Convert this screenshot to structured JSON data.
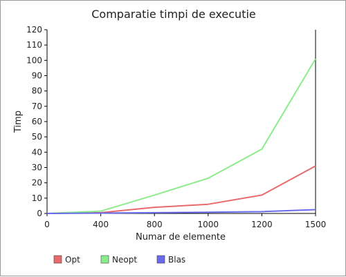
{
  "chart_data": {
    "type": "line",
    "title": "Comparatie timpi de executie",
    "xlabel": "Numar de elemente",
    "ylabel": "Timp",
    "x_categories": [
      "0",
      "400",
      "800",
      "1000",
      "1200",
      "1500"
    ],
    "ylim": [
      0,
      120
    ],
    "y_ticks": [
      0,
      10,
      20,
      30,
      40,
      50,
      60,
      70,
      80,
      90,
      100,
      110,
      120
    ],
    "grid": false,
    "legend_position": "bottom-left",
    "series": [
      {
        "name": "Opt",
        "color": "#e86a6a",
        "values": [
          0,
          0.5,
          4,
          6,
          12,
          31
        ]
      },
      {
        "name": "Neopt",
        "color": "#8cec8c",
        "values": [
          0,
          1.5,
          12,
          23,
          42,
          101
        ]
      },
      {
        "name": "Blas",
        "color": "#6a6aec",
        "values": [
          0,
          0.2,
          0.5,
          0.8,
          1.2,
          2.5
        ]
      }
    ]
  }
}
